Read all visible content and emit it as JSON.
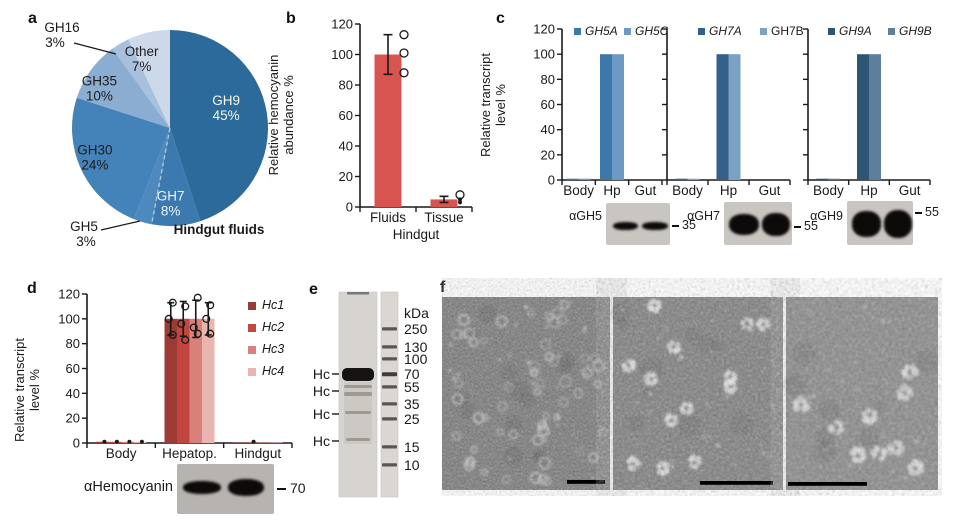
{
  "panels": {
    "a": {
      "label": "a"
    },
    "b": {
      "label": "b"
    },
    "c": {
      "label": "c",
      "blots": [
        {
          "antibody": "αGH5",
          "marker": "35"
        },
        {
          "antibody": "αGH7",
          "marker": "55"
        },
        {
          "antibody": "αGH9",
          "marker": "55"
        }
      ]
    },
    "d": {
      "label": "d",
      "blot": {
        "antibody": "αHemocyanin",
        "marker": "70"
      }
    },
    "e": {
      "label": "e",
      "gel": {
        "kda_label": "kDa",
        "markers": [
          "250",
          "130",
          "100",
          "70",
          "55",
          "35",
          "25",
          "15",
          "10"
        ],
        "band_labels": [
          "Hc",
          "Hc",
          "Hc",
          "Hc"
        ]
      }
    },
    "f": {
      "label": "f",
      "micrograph_count": 3
    }
  },
  "chart_data": [
    {
      "id": "a",
      "type": "pie",
      "title": "Hindgut fluids",
      "slices": [
        {
          "label": "GH9",
          "value": 45,
          "color": "#2c6a9c",
          "text_color": "#f6f8ec"
        },
        {
          "label": "GH7",
          "value": 8,
          "color": "#3b79ae",
          "text_color": "#eef3f8",
          "dashed_after": true
        },
        {
          "label": "GH5",
          "value": 3,
          "color": "#4d89bc",
          "outside": true
        },
        {
          "label": "GH30",
          "value": 24,
          "color": "#4483b9",
          "text_color": "#1d1d1b"
        },
        {
          "label": "GH35",
          "value": 10,
          "color": "#8badd1",
          "text_color": "#1d1d1b"
        },
        {
          "label": "GH16",
          "value": 3,
          "color": "#a7c1dd",
          "outside": true
        },
        {
          "label": "Other",
          "value": 7,
          "color": "#cdd9e9",
          "text_color": "#1d1d1b"
        }
      ]
    },
    {
      "id": "b",
      "type": "bar",
      "ylabel": [
        "Relative hemocyanin",
        "abundance %"
      ],
      "xlabel": "Hindgut",
      "categories": [
        "Fluids",
        "Tissue"
      ],
      "values": [
        100,
        5
      ],
      "errors": [
        13,
        2
      ],
      "points": [
        [
          113,
          101,
          88
        ],
        [
          8,
          5,
          3
        ]
      ],
      "bar_color": "#d85450",
      "ylim": [
        0,
        120
      ],
      "yticks": [
        0,
        20,
        40,
        60,
        80,
        100,
        120
      ]
    },
    {
      "id": "c1",
      "type": "bar",
      "ylabel": [
        "Relative transcript",
        "level %"
      ],
      "categories": [
        "Body",
        "Hp",
        "Gut"
      ],
      "ylim": [
        0,
        120
      ],
      "yticks": [
        0,
        20,
        40,
        60,
        80,
        100,
        120
      ],
      "series": [
        {
          "name": "GH5A",
          "italic": true,
          "color": "#3d78aa",
          "values": [
            1,
            100,
            0
          ]
        },
        {
          "name": "GH5C",
          "italic": true,
          "color": "#6d9ac5",
          "values": [
            1,
            100,
            0
          ]
        }
      ]
    },
    {
      "id": "c2",
      "type": "bar",
      "categories": [
        "Body",
        "Hp",
        "Gut"
      ],
      "ylim": [
        0,
        120
      ],
      "yticks": [
        0,
        20,
        40,
        60,
        80,
        100,
        120
      ],
      "series": [
        {
          "name": "GH7A",
          "italic": true,
          "color": "#34618c",
          "values": [
            1,
            100,
            0
          ]
        },
        {
          "name": "GH7B",
          "italic": false,
          "color": "#7ba1c4",
          "values": [
            1,
            100,
            0
          ]
        }
      ]
    },
    {
      "id": "c3",
      "type": "bar",
      "categories": [
        "Body",
        "Hp",
        "Gut"
      ],
      "ylim": [
        0,
        120
      ],
      "yticks": [
        0,
        20,
        40,
        60,
        80,
        100,
        120
      ],
      "series": [
        {
          "name": "GH9A",
          "italic": true,
          "color": "#2d5675",
          "values": [
            1,
            100,
            0
          ]
        },
        {
          "name": "GH9B",
          "italic": true,
          "color": "#5e7f9b",
          "values": [
            1,
            100,
            0
          ]
        }
      ]
    },
    {
      "id": "d",
      "type": "bar",
      "ylabel": [
        "Relative transcript",
        "level %"
      ],
      "categories": [
        "Body",
        "Hepatop.",
        "Hindgut"
      ],
      "ylim": [
        0,
        120
      ],
      "yticks": [
        0,
        20,
        40,
        60,
        80,
        100,
        120
      ],
      "series": [
        {
          "name": "Hc1",
          "italic": true,
          "color": "#9c3a34",
          "values": [
            1,
            100,
            0.4
          ],
          "errors": [
            0,
            13,
            0
          ],
          "points": [
            [
              1
            ],
            [
              113,
              100,
              87
            ],
            []
          ]
        },
        {
          "name": "Hc2",
          "italic": true,
          "color": "#c0463f",
          "values": [
            1,
            100,
            0.4
          ],
          "errors": [
            0,
            14,
            0
          ],
          "points": [
            [
              1
            ],
            [
              110,
              96,
              83
            ],
            [
              1
            ]
          ]
        },
        {
          "name": "Hc3",
          "italic": true,
          "color": "#d8817a",
          "values": [
            1,
            100,
            0.4
          ],
          "errors": [
            0,
            15,
            0
          ],
          "points": [
            [
              1
            ],
            [
              117,
              93,
              88
            ],
            []
          ]
        },
        {
          "name": "Hc4",
          "italic": true,
          "color": "#eab5ae",
          "values": [
            1,
            100,
            0.4
          ],
          "errors": [
            0,
            13,
            0
          ],
          "points": [
            [
              1
            ],
            [
              111,
              100,
              88
            ],
            []
          ]
        }
      ]
    }
  ]
}
